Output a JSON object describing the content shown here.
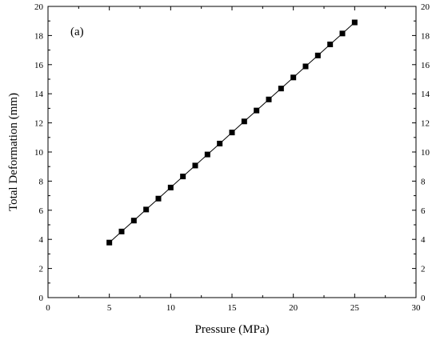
{
  "chart_data": {
    "type": "line",
    "panel_label": "(a)",
    "title": "",
    "xlabel": "Pressure (MPa)",
    "ylabel": "Total Deformation (mm)",
    "xlim": [
      0,
      30
    ],
    "ylim": [
      0,
      20
    ],
    "xticks": [
      "0",
      "5",
      "10",
      "15",
      "20",
      "25",
      "30"
    ],
    "yticks": [
      "0",
      "2",
      "4",
      "6",
      "8",
      "10",
      "12",
      "14",
      "16",
      "18",
      "20"
    ],
    "grid": false,
    "legend": "none",
    "marker": "filled-square",
    "color": "#000000",
    "series": [
      {
        "x": [
          5,
          6,
          7,
          8,
          9,
          10,
          11,
          12,
          13,
          14,
          15,
          16,
          17,
          18,
          19,
          20,
          21,
          22,
          23,
          24,
          25
        ],
        "y": [
          3.78,
          4.54,
          5.29,
          6.05,
          6.8,
          7.56,
          8.32,
          9.07,
          9.83,
          10.58,
          11.34,
          12.1,
          12.85,
          13.61,
          14.36,
          15.12,
          15.88,
          16.63,
          17.39,
          18.14,
          18.9
        ]
      }
    ]
  }
}
